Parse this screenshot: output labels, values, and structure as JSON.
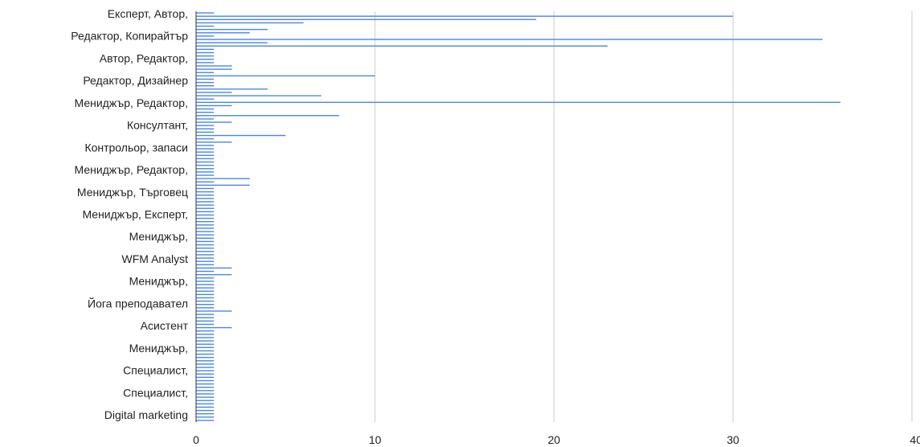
{
  "chart_data": {
    "type": "bar",
    "orientation": "horizontal",
    "title": "",
    "xlabel": "",
    "ylabel": "",
    "xlim": [
      0,
      40
    ],
    "x_ticks": [
      0,
      10,
      20,
      30,
      40
    ],
    "grid": true,
    "legend": "none",
    "bar_color": "#4a86e8",
    "grid_color": "#cccccc",
    "visible_category_labels": [
      "Експерт, Автор,",
      "Редактор, Копирайтър",
      "Автор, Редактор,",
      "Редактор, Дизайнер",
      "Мениджър, Редактор,",
      "Консултант,",
      "Контрольор, запаси",
      "Мениджър, Редактор,",
      "Мениджър, Търговец",
      "Мениджър, Експерт,",
      "Мениджър,",
      "WFM Analyst",
      "Мениджър,",
      "Йога преподавател",
      "Асистент",
      "Мениджър,",
      "Специалист,",
      "Специалист,",
      "Digital marketing"
    ],
    "values": [
      1,
      30,
      19,
      6,
      1,
      4,
      3,
      1,
      35,
      4,
      23,
      1,
      1,
      1,
      1,
      1,
      2,
      2,
      1,
      10,
      1,
      1,
      1,
      4,
      2,
      7,
      1,
      36,
      2,
      1,
      1,
      8,
      1,
      2,
      1,
      1,
      1,
      5,
      1,
      2,
      1,
      1,
      1,
      1,
      1,
      1,
      1,
      1,
      1,
      1,
      3,
      1,
      3,
      1,
      1,
      1,
      1,
      1,
      1,
      1,
      1,
      1,
      1,
      1,
      1,
      1,
      1,
      1,
      1,
      1,
      1,
      1,
      1,
      1,
      1,
      1,
      1,
      2,
      1,
      2,
      1,
      1,
      1,
      1,
      1,
      1,
      1,
      1,
      1,
      1,
      2,
      1,
      1,
      1,
      1,
      2,
      1,
      1,
      1,
      1,
      1,
      1,
      1,
      1,
      1,
      1,
      1,
      1,
      1,
      1,
      1,
      1,
      1,
      1,
      1,
      1,
      1,
      1,
      1,
      1,
      1,
      1,
      1,
      1
    ]
  }
}
